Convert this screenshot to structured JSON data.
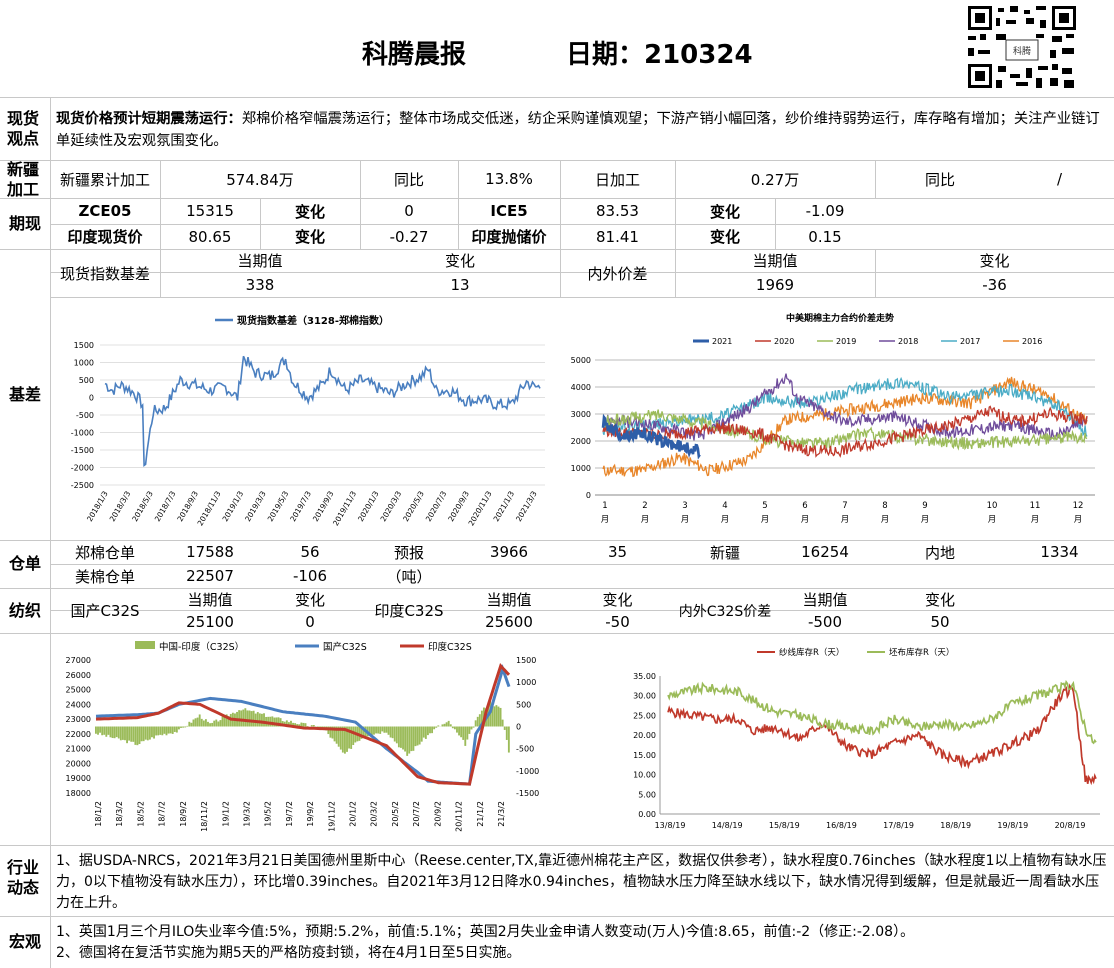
{
  "header": {
    "title": "科腾晨报",
    "date": "日期：210324"
  },
  "sections": {
    "spot_view": {
      "label": "现货观点",
      "heading": "现货价格预计短期震荡运行：",
      "body": "郑棉价格窄幅震荡运行；整体市场成交低迷，纺企采购谨慎观望；下游产销小幅回落，纱价维持弱势运行，库存略有增加；关注产业链订单延续性及宏观氛围变化。"
    },
    "xinjiang": {
      "label": "新疆加工",
      "c1": "新疆累计加工",
      "c2": "574.84万",
      "c3": "同比",
      "c4": "13.8%",
      "c5": "日加工",
      "c6": "0.27万",
      "c7": "同比",
      "c8": "/"
    },
    "futures": {
      "label": "期现",
      "r1": [
        "ZCE05",
        "15315",
        "变化",
        "0",
        "ICE5",
        "83.53",
        "变化",
        "-1.09"
      ],
      "r2": [
        "印度现货价",
        "80.65",
        "变化",
        "-0.27",
        "印度抛储价",
        "81.41",
        "变化",
        "0.15"
      ]
    },
    "basis": {
      "label": "基差",
      "c1": "现货指数基差",
      "h1": "当期值",
      "h2": "变化",
      "v1": "338",
      "v2": "13",
      "c2": "内外价差",
      "h3": "当期值",
      "h4": "变化",
      "v3": "1969",
      "v4": "-36"
    },
    "warehouse": {
      "label": "仓单",
      "r1": [
        "郑棉仓单",
        "17588",
        "56",
        "预报",
        "3966",
        "35",
        "新疆",
        "16254",
        "内地",
        "1334"
      ],
      "r2": [
        "美棉仓单",
        "22507",
        "-106",
        "（吨）"
      ]
    },
    "spinning": {
      "label": "纺织",
      "c1": "国产C32S",
      "h1": "当期值",
      "h2": "变化",
      "v1": "25100",
      "v2": "0",
      "c2": "印度C32S",
      "h3": "当期值",
      "h4": "变化",
      "v3": "25600",
      "v4": "-50",
      "c3": "内外C32S价差",
      "h5": "当期值",
      "h6": "变化",
      "v5": "-500",
      "v6": "50"
    },
    "industry": {
      "label": "行业动态",
      "body": "1、据USDA-NRCS，2021年3月21日美国德州里斯中心（Reese.center,TX,靠近德州棉花主产区，数据仅供参考），缺水程度0.76inches（缺水程度1以上植物有缺水压力，0以下植物没有缺水压力），环比增0.39inches。自2021年3月12日降水0.94inches，植物缺水压力降至缺水线以下，缺水情况得到缓解，但是就最近一周看缺水压力在上升。"
    },
    "macro": {
      "label": "宏观",
      "l1": "1、英国1月三个月ILO失业率今值:5%，预期:5.2%，前值:5.1%；英国2月失业金申请人数变动(万人)今值:8.65，前值:-2（修正:-2.08）。",
      "l2": "2、德国将在复活节实施为期5天的严格防疫封锁，将在4月1日至5日实施。"
    }
  },
  "qr": {
    "caption": "科腾"
  },
  "chart_data": [
    {
      "type": "line",
      "title": "",
      "series": [
        {
          "name": "现货指数基差（3128-郑棉指数）",
          "color": "#4a7fc0"
        }
      ],
      "ylim": [
        -2500,
        1500
      ],
      "yticks": [
        "1500",
        "1000",
        "500",
        "0",
        "-500",
        "-1000",
        "-1500",
        "-2000",
        "-2500"
      ],
      "xticks": [
        "2018/1/3",
        "2018/3/3",
        "2018/5/3",
        "2018/7/3",
        "2018/9/3",
        "2018/11/3",
        "2019/1/3",
        "2019/3/3",
        "2019/5/3",
        "2019/7/3",
        "2019/9/3",
        "2019/11/3",
        "2020/1/3",
        "2020/3/3",
        "2020/5/3",
        "2020/7/3",
        "2020/9/3",
        "2020/11/3",
        "2021/1/3",
        "2021/3/3"
      ],
      "keypoints": [
        [
          0,
          400
        ],
        [
          5,
          200
        ],
        [
          10,
          350
        ],
        [
          14,
          300
        ],
        [
          20,
          100
        ],
        [
          25,
          -200
        ],
        [
          26,
          -2100
        ],
        [
          28,
          -1500
        ],
        [
          32,
          -400
        ],
        [
          40,
          -300
        ],
        [
          50,
          500
        ],
        [
          60,
          350
        ],
        [
          70,
          200
        ],
        [
          80,
          300
        ],
        [
          88,
          0
        ],
        [
          92,
          1150
        ],
        [
          100,
          700
        ],
        [
          110,
          600
        ],
        [
          120,
          1100
        ],
        [
          125,
          450
        ],
        [
          135,
          0
        ],
        [
          145,
          400
        ],
        [
          150,
          800
        ],
        [
          160,
          200
        ],
        [
          170,
          500
        ],
        [
          180,
          300
        ],
        [
          190,
          100
        ],
        [
          200,
          400
        ],
        [
          210,
          600
        ],
        [
          215,
          800
        ],
        [
          220,
          200
        ],
        [
          230,
          200
        ],
        [
          240,
          -100
        ],
        [
          250,
          -50
        ],
        [
          260,
          -200
        ],
        [
          270,
          -200
        ],
        [
          280,
          450
        ],
        [
          285,
          300
        ]
      ]
    },
    {
      "type": "line",
      "title": "中美期棉主力合约价差走势",
      "ylim": [
        0,
        5000
      ],
      "yticks": [
        "5000",
        "4000",
        "3000",
        "2000",
        "1000",
        "0"
      ],
      "xticks": [
        "1月",
        "2月",
        "3月",
        "4月",
        "5月",
        "6月",
        "7月",
        "8月",
        "9月",
        "10月",
        "11月",
        "12月"
      ],
      "series": [
        {
          "name": "2021",
          "color": "#2e5ea8"
        },
        {
          "name": "2020",
          "color": "#c0392b"
        },
        {
          "name": "2019",
          "color": "#9bbb59"
        },
        {
          "name": "2018",
          "color": "#6f4c9b"
        },
        {
          "name": "2017",
          "color": "#4bacc6"
        },
        {
          "name": "2016",
          "color": "#e8862a"
        }
      ]
    },
    {
      "type": "line",
      "title": "",
      "ylim": [
        18000,
        27000
      ],
      "y2lim": [
        -1500,
        1500
      ],
      "yticks": [
        "27000",
        "26000",
        "25000",
        "24000",
        "23000",
        "22000",
        "21000",
        "20000",
        "19000",
        "18000"
      ],
      "y2ticks": [
        "1500",
        "1000",
        "500",
        "0",
        "-500",
        "-1000",
        "-1500"
      ],
      "xticks": [
        "18/1/2",
        "18/3/2",
        "18/5/2",
        "18/7/2",
        "18/9/2",
        "18/11/2",
        "19/1/2",
        "19/3/2",
        "19/5/2",
        "19/7/2",
        "19/9/2",
        "19/11/2",
        "20/1/2",
        "20/3/2",
        "20/5/2",
        "20/7/2",
        "20/9/2",
        "20/11/2",
        "21/1/2",
        "21/3/2"
      ],
      "series": [
        {
          "name": "中国-印度（C32S）",
          "color": "#9bbb59"
        },
        {
          "name": "国产C32S",
          "color": "#4a7fc0"
        },
        {
          "name": "印度C32S",
          "color": "#c0392b"
        }
      ]
    },
    {
      "type": "line",
      "title": "",
      "ylim": [
        0,
        35
      ],
      "yticks": [
        "35.00",
        "30.00",
        "25.00",
        "20.00",
        "15.00",
        "10.00",
        "5.00",
        "0.00"
      ],
      "xticks": [
        "13/8/19",
        "14/8/19",
        "15/8/19",
        "16/8/19",
        "17/8/19",
        "18/8/19",
        "19/8/19",
        "20/8/19"
      ],
      "series": [
        {
          "name": "纱线库存R（天）",
          "color": "#c0392b"
        },
        {
          "name": "坯布库存R（天）",
          "color": "#9bbb59"
        }
      ]
    }
  ]
}
